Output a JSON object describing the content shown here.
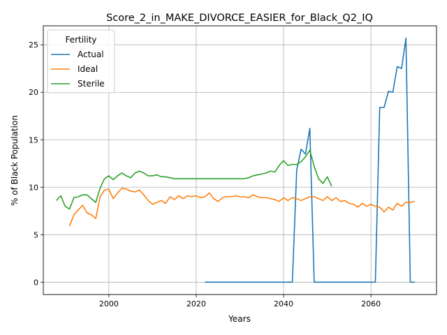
{
  "chart_data": {
    "type": "line",
    "title": "Score_2_in_MAKE_DIVORCE_EASIER_for_Black_Q2_IQ",
    "xlabel": "Years",
    "ylabel": "% of Black Population",
    "xlim": [
      1985,
      2075
    ],
    "ylim": [
      -1.3,
      27
    ],
    "xticks": [
      2000,
      2020,
      2040,
      2060
    ],
    "yticks": [
      0,
      5,
      10,
      15,
      20,
      25
    ],
    "grid": true,
    "legend": {
      "title": "Fertility",
      "placement": "top-left"
    },
    "series": [
      {
        "name": "Actual",
        "color": "#1f77b4",
        "points": [
          [
            2022,
            0
          ],
          [
            2030,
            0
          ],
          [
            2040,
            0
          ],
          [
            2042,
            0
          ],
          [
            2043,
            11.8
          ],
          [
            2044,
            14.0
          ],
          [
            2045,
            13.5
          ],
          [
            2046,
            16.2
          ],
          [
            2047,
            0
          ],
          [
            2055,
            0
          ],
          [
            2061,
            0
          ],
          [
            2062,
            18.4
          ],
          [
            2063,
            18.4
          ],
          [
            2064,
            20.1
          ],
          [
            2065,
            20.0
          ],
          [
            2066,
            22.7
          ],
          [
            2067,
            22.5
          ],
          [
            2068,
            25.7
          ],
          [
            2069,
            0
          ],
          [
            2070,
            0
          ]
        ]
      },
      {
        "name": "Ideal",
        "color": "#ff7f0e",
        "points": [
          [
            1991,
            5.9
          ],
          [
            1992,
            7.1
          ],
          [
            1993,
            7.6
          ],
          [
            1994,
            8.1
          ],
          [
            1995,
            7.3
          ],
          [
            1996,
            7.1
          ],
          [
            1997,
            6.7
          ],
          [
            1998,
            9.0
          ],
          [
            1999,
            9.7
          ],
          [
            2000,
            9.8
          ],
          [
            2001,
            8.8
          ],
          [
            2002,
            9.4
          ],
          [
            2003,
            9.9
          ],
          [
            2004,
            9.8
          ],
          [
            2005,
            9.6
          ],
          [
            2006,
            9.5
          ],
          [
            2007,
            9.7
          ],
          [
            2008,
            9.2
          ],
          [
            2009,
            8.6
          ],
          [
            2010,
            8.2
          ],
          [
            2011,
            8.4
          ],
          [
            2012,
            8.6
          ],
          [
            2013,
            8.3
          ],
          [
            2014,
            9.0
          ],
          [
            2015,
            8.7
          ],
          [
            2016,
            9.1
          ],
          [
            2017,
            8.8
          ],
          [
            2018,
            9.1
          ],
          [
            2019,
            9.0
          ],
          [
            2020,
            9.1
          ],
          [
            2021,
            8.9
          ],
          [
            2022,
            9.0
          ],
          [
            2023,
            9.4
          ],
          [
            2024,
            8.8
          ],
          [
            2025,
            8.5
          ],
          [
            2026,
            8.9
          ],
          [
            2027,
            9.0
          ],
          [
            2028,
            9.0
          ],
          [
            2029,
            9.1
          ],
          [
            2030,
            9.0
          ],
          [
            2031,
            9.0
          ],
          [
            2032,
            8.9
          ],
          [
            2033,
            9.2
          ],
          [
            2034,
            9.0
          ],
          [
            2035,
            8.9
          ],
          [
            2036,
            8.9
          ],
          [
            2037,
            8.8
          ],
          [
            2038,
            8.7
          ],
          [
            2039,
            8.5
          ],
          [
            2040,
            8.9
          ],
          [
            2041,
            8.6
          ],
          [
            2042,
            8.9
          ],
          [
            2043,
            8.8
          ],
          [
            2044,
            8.6
          ],
          [
            2045,
            8.8
          ],
          [
            2046,
            9.0
          ],
          [
            2047,
            9.0
          ],
          [
            2048,
            8.8
          ],
          [
            2049,
            8.6
          ],
          [
            2050,
            9.0
          ],
          [
            2051,
            8.6
          ],
          [
            2052,
            8.9
          ],
          [
            2053,
            8.5
          ],
          [
            2054,
            8.6
          ],
          [
            2055,
            8.3
          ],
          [
            2056,
            8.2
          ],
          [
            2057,
            7.9
          ],
          [
            2058,
            8.3
          ],
          [
            2059,
            8.0
          ],
          [
            2060,
            8.2
          ],
          [
            2061,
            8.0
          ],
          [
            2062,
            7.9
          ],
          [
            2063,
            7.4
          ],
          [
            2064,
            7.9
          ],
          [
            2065,
            7.6
          ],
          [
            2066,
            8.3
          ],
          [
            2067,
            8.0
          ],
          [
            2068,
            8.4
          ],
          [
            2069,
            8.4
          ],
          [
            2070,
            8.5
          ]
        ]
      },
      {
        "name": "Sterile",
        "color": "#2ca02c",
        "points": [
          [
            1988,
            8.6
          ],
          [
            1989,
            9.1
          ],
          [
            1990,
            8.0
          ],
          [
            1991,
            7.7
          ],
          [
            1992,
            8.9
          ],
          [
            1993,
            9.0
          ],
          [
            1994,
            9.2
          ],
          [
            1995,
            9.2
          ],
          [
            1996,
            8.8
          ],
          [
            1997,
            8.4
          ],
          [
            1998,
            9.9
          ],
          [
            1999,
            10.9
          ],
          [
            2000,
            11.2
          ],
          [
            2001,
            10.8
          ],
          [
            2002,
            11.2
          ],
          [
            2003,
            11.5
          ],
          [
            2004,
            11.2
          ],
          [
            2005,
            11.0
          ],
          [
            2006,
            11.5
          ],
          [
            2007,
            11.7
          ],
          [
            2008,
            11.5
          ],
          [
            2009,
            11.2
          ],
          [
            2010,
            11.2
          ],
          [
            2011,
            11.3
          ],
          [
            2012,
            11.1
          ],
          [
            2013,
            11.1
          ],
          [
            2014,
            11.0
          ],
          [
            2015,
            10.9
          ],
          [
            2016,
            10.9
          ],
          [
            2017,
            10.9
          ],
          [
            2018,
            10.9
          ],
          [
            2019,
            10.9
          ],
          [
            2020,
            10.9
          ],
          [
            2025,
            10.9
          ],
          [
            2030,
            10.9
          ],
          [
            2031,
            10.9
          ],
          [
            2032,
            11.0
          ],
          [
            2033,
            11.2
          ],
          [
            2034,
            11.3
          ],
          [
            2035,
            11.4
          ],
          [
            2036,
            11.5
          ],
          [
            2037,
            11.7
          ],
          [
            2038,
            11.6
          ],
          [
            2039,
            12.3
          ],
          [
            2040,
            12.8
          ],
          [
            2041,
            12.3
          ],
          [
            2042,
            12.4
          ],
          [
            2043,
            12.4
          ],
          [
            2044,
            12.7
          ],
          [
            2045,
            13.2
          ],
          [
            2046,
            13.9
          ],
          [
            2047,
            12.2
          ],
          [
            2048,
            10.9
          ],
          [
            2049,
            10.4
          ],
          [
            2050,
            11.1
          ],
          [
            2051,
            10.1
          ]
        ]
      }
    ]
  }
}
